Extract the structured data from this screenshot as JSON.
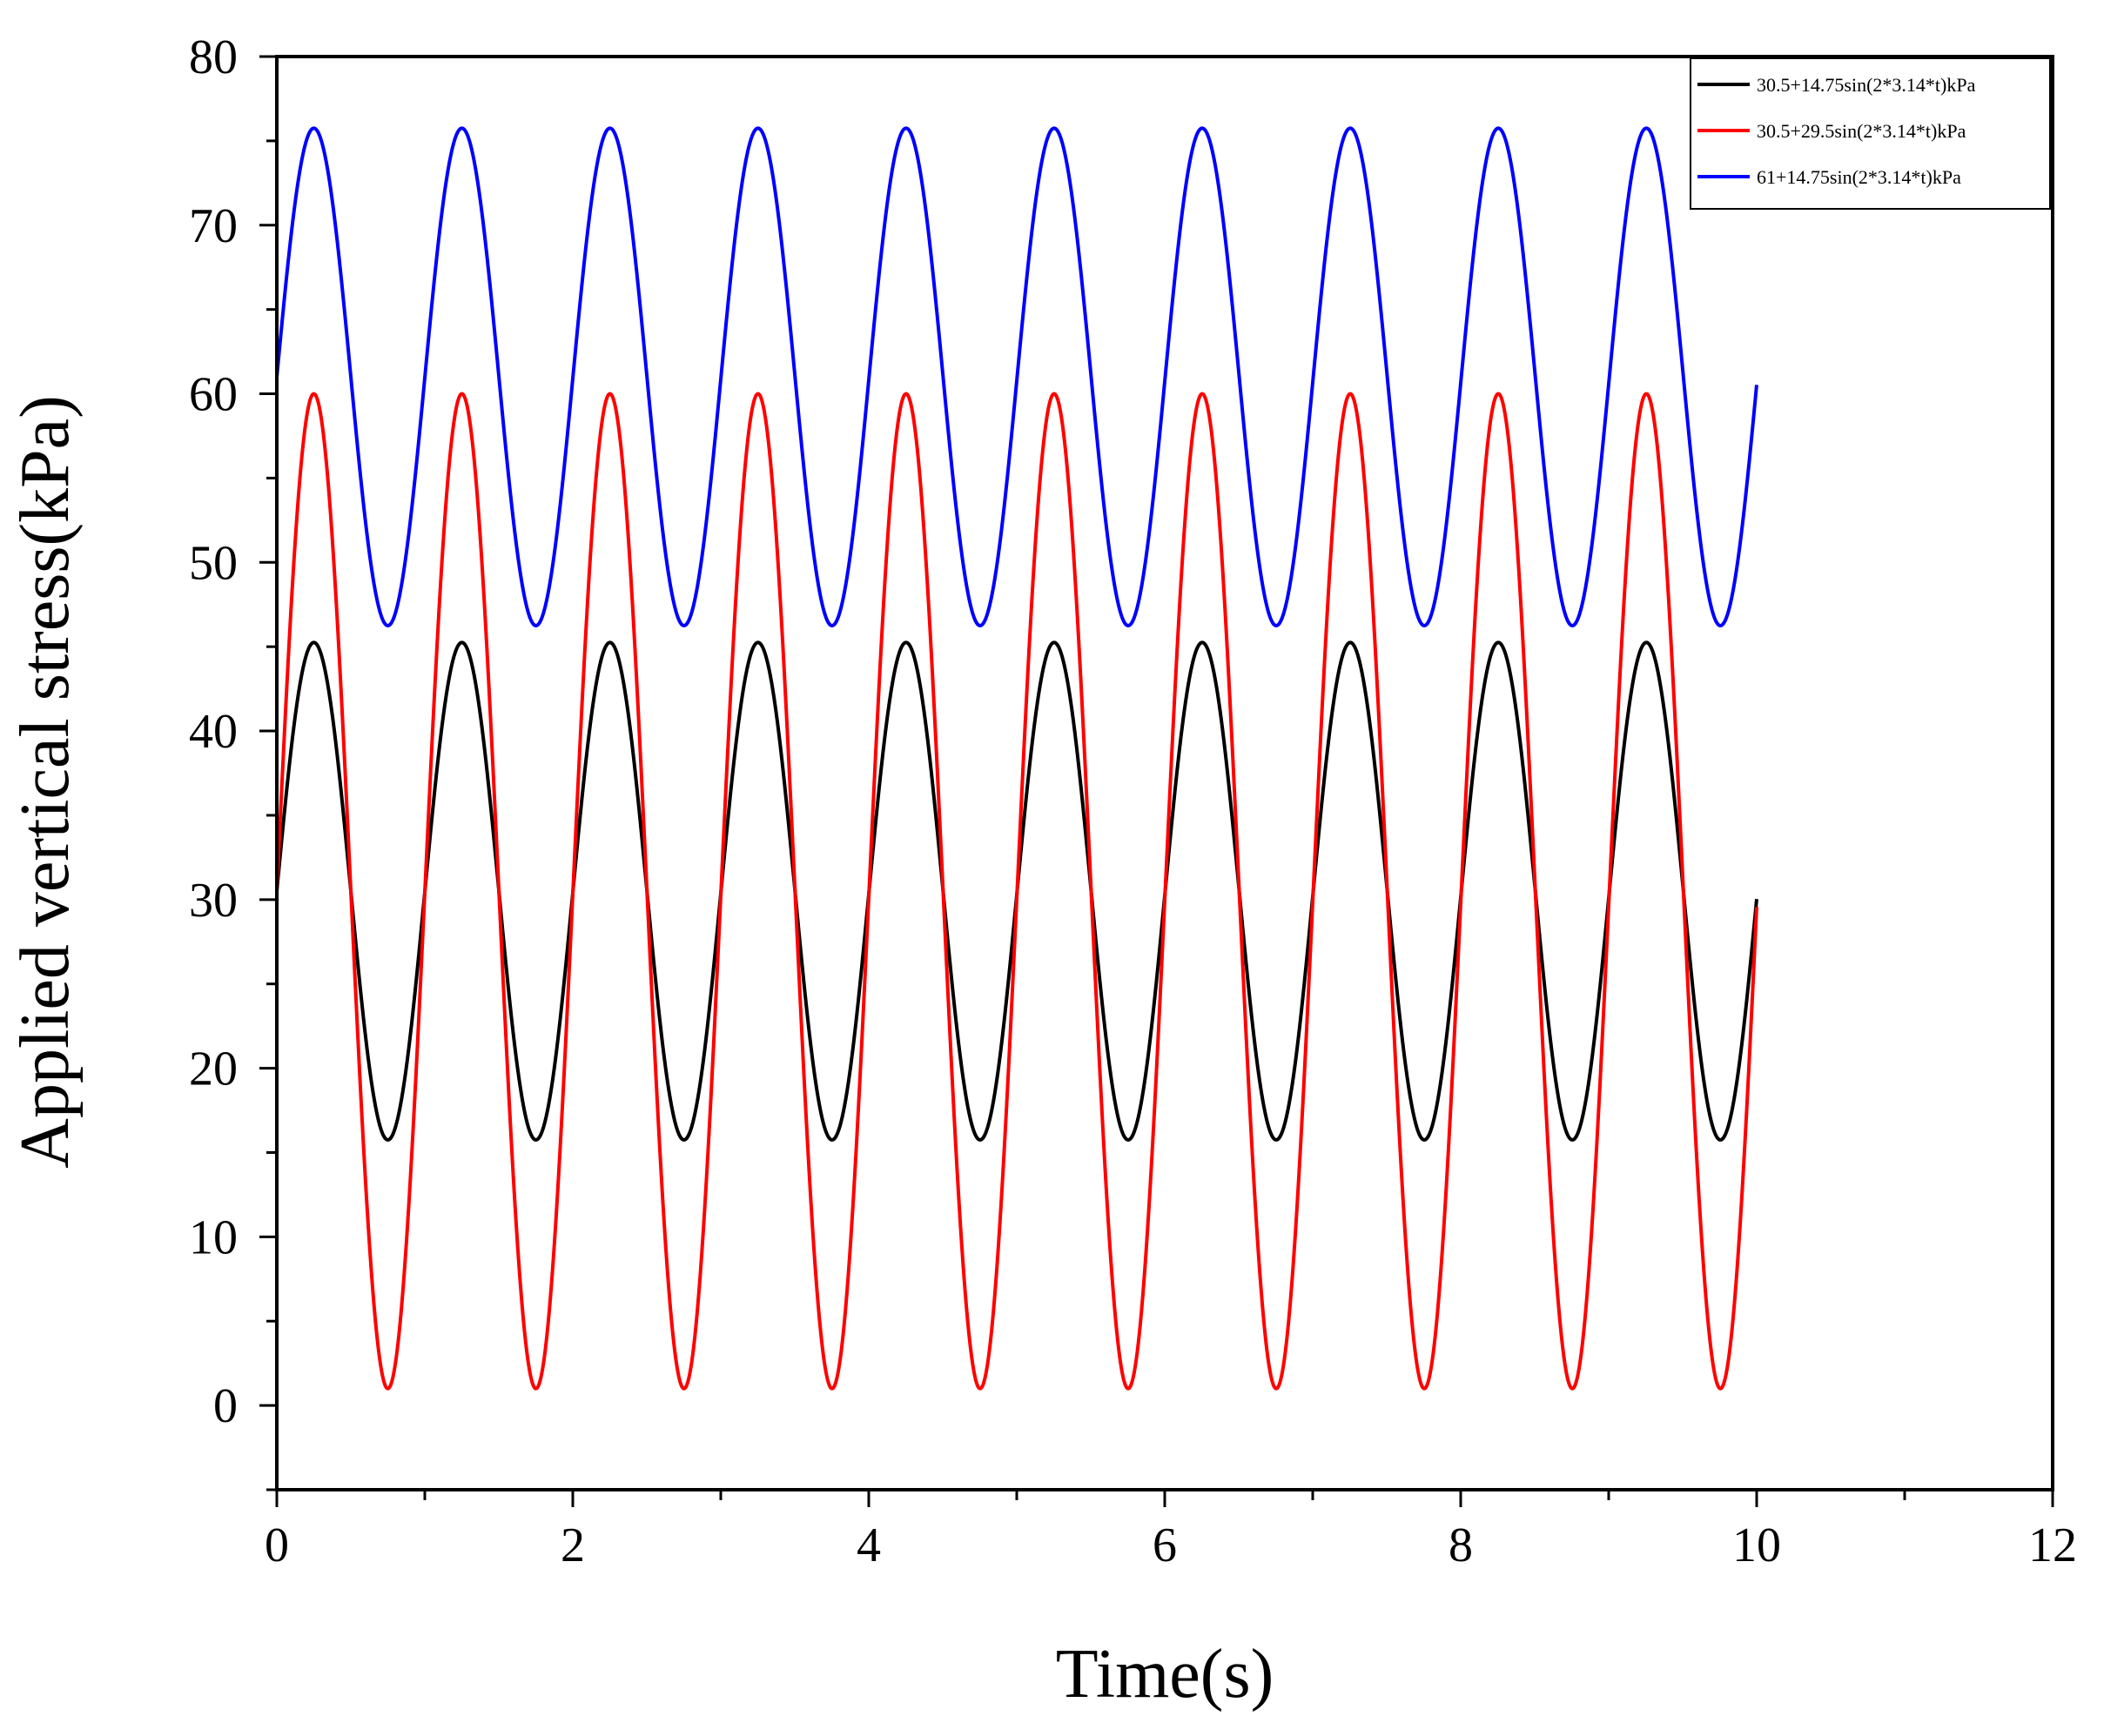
{
  "chart_data": {
    "type": "line",
    "title": "",
    "xlabel": "Time(s)",
    "ylabel": "Applied vertical stress(kPa)",
    "xlim": [
      0,
      12
    ],
    "ylim": [
      -5,
      80
    ],
    "x_ticks": [
      0,
      2,
      4,
      6,
      8,
      10,
      12
    ],
    "x_minor_step": 1,
    "y_ticks": [
      0,
      10,
      20,
      30,
      40,
      50,
      60,
      70,
      80
    ],
    "y_minor_step": 5,
    "grid": false,
    "legend_position": "top-right",
    "x_domain": [
      0,
      10
    ],
    "series": [
      {
        "name": "30.5+14.75sin(2*3.14*t)kPa",
        "color": "#000000",
        "mean": 30.5,
        "amplitude": 14.75,
        "angular_frequency": 6.28
      },
      {
        "name": "30.5+29.5sin(2*3.14*t)kPa",
        "color": "#ff0000",
        "mean": 30.5,
        "amplitude": 29.5,
        "angular_frequency": 6.28
      },
      {
        "name": "61+14.75sin(2*3.14*t)kPa",
        "color": "#0000ff",
        "mean": 61,
        "amplitude": 14.75,
        "angular_frequency": 6.28
      }
    ]
  }
}
